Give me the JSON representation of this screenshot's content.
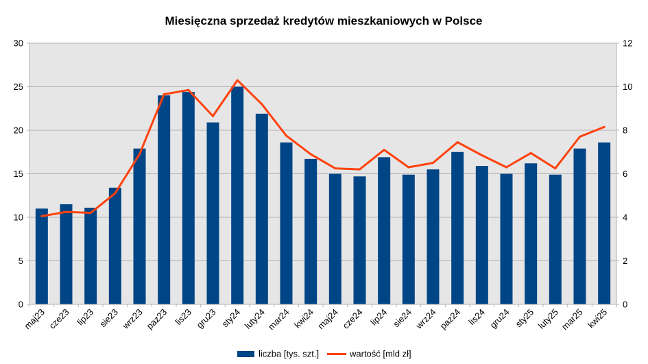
{
  "chart_data": {
    "type": "bar",
    "title": "Miesięczna sprzedaż kredytów mieszkaniowych w Polsce",
    "categories": [
      "maj23",
      "cze23",
      "lip23",
      "sie23",
      "wrz23",
      "paz23",
      "lis23",
      "gru23",
      "sty24",
      "luty24",
      "mar24",
      "kwi24",
      "maj24",
      "cze24",
      "lip24",
      "sie24",
      "wrz24",
      "paz24",
      "lis24",
      "gru24",
      "sty25",
      "luty25",
      "mar25",
      "kwi25"
    ],
    "series": [
      {
        "name": "liczba [tys. szt.]",
        "type": "bar",
        "axis": "left",
        "color": "#004586",
        "values": [
          11.0,
          11.5,
          11.1,
          13.4,
          17.9,
          24.0,
          24.4,
          20.9,
          25.0,
          21.9,
          18.6,
          16.7,
          15.0,
          14.7,
          16.9,
          14.9,
          15.5,
          17.5,
          15.9,
          15.0,
          16.2,
          14.9,
          17.9,
          18.6
        ]
      },
      {
        "name": "wartość [mld zł]",
        "type": "line",
        "axis": "right",
        "color": "#ff420e",
        "values": [
          4.05,
          4.25,
          4.2,
          5.1,
          6.9,
          9.65,
          9.85,
          8.65,
          10.3,
          9.2,
          7.75,
          6.9,
          6.25,
          6.2,
          7.1,
          6.3,
          6.5,
          7.45,
          6.85,
          6.3,
          6.95,
          6.25,
          7.7,
          8.15
        ]
      }
    ],
    "y_left": {
      "min": 0,
      "max": 30,
      "ticks": [
        0,
        5,
        10,
        15,
        20,
        25,
        30
      ]
    },
    "y_right": {
      "min": 0,
      "max": 12,
      "ticks": [
        0,
        2,
        4,
        6,
        8,
        10,
        12
      ]
    },
    "grid": true,
    "legend_position": "bottom",
    "plot_background": "#e6e6e6",
    "grid_color": "#b3b3b3"
  }
}
